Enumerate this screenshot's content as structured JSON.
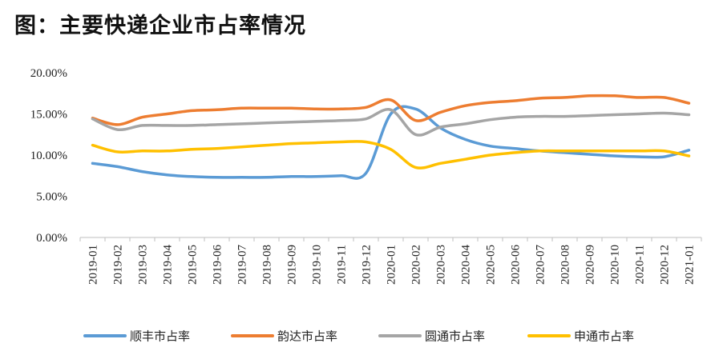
{
  "title": "图：主要快递企业市占率情况",
  "chart_data": {
    "type": "line",
    "title": "图：主要快递企业市占率情况",
    "xlabel": "",
    "ylabel": "",
    "ylim": [
      0,
      20
    ],
    "yticks": [
      "0.00%",
      "5.00%",
      "10.00%",
      "15.00%",
      "20.00%"
    ],
    "grid": false,
    "legend_position": "bottom",
    "x": [
      "2019-01",
      "2019-02",
      "2019-03",
      "2019-04",
      "2019-05",
      "2019-06",
      "2019-07",
      "2019-08",
      "2019-09",
      "2019-10",
      "2019-11",
      "2019-12",
      "2020-01",
      "2020-02",
      "2020-03",
      "2020-04",
      "2020-05",
      "2020-06",
      "2020-07",
      "2020-08",
      "2020-09",
      "2020-10",
      "2020-11",
      "2020-12",
      "2021-01"
    ],
    "series": [
      {
        "name": "顺丰市占率",
        "color": "#5B9BD5",
        "values": [
          9.0,
          8.6,
          8.0,
          7.6,
          7.4,
          7.3,
          7.3,
          7.3,
          7.4,
          7.4,
          7.5,
          7.8,
          15.0,
          15.6,
          13.3,
          11.9,
          11.1,
          10.8,
          10.5,
          10.3,
          10.1,
          9.9,
          9.8,
          9.8,
          10.6
        ]
      },
      {
        "name": "韵达市占率",
        "color": "#ED7D31",
        "values": [
          14.5,
          13.7,
          14.6,
          15.0,
          15.4,
          15.5,
          15.7,
          15.7,
          15.7,
          15.6,
          15.6,
          15.8,
          16.7,
          14.2,
          15.2,
          16.0,
          16.4,
          16.6,
          16.9,
          17.0,
          17.2,
          17.2,
          17.0,
          17.0,
          16.3
        ]
      },
      {
        "name": "圆通市占率",
        "color": "#A5A5A5",
        "values": [
          14.4,
          13.1,
          13.6,
          13.6,
          13.6,
          13.7,
          13.8,
          13.9,
          14.0,
          14.1,
          14.2,
          14.4,
          15.5,
          12.5,
          13.4,
          13.8,
          14.3,
          14.6,
          14.7,
          14.7,
          14.8,
          14.9,
          15.0,
          15.1,
          14.9
        ]
      },
      {
        "name": "申通市占率",
        "color": "#FFC000",
        "values": [
          11.2,
          10.4,
          10.5,
          10.5,
          10.7,
          10.8,
          11.0,
          11.2,
          11.4,
          11.5,
          11.6,
          11.6,
          10.7,
          8.5,
          9.0,
          9.5,
          10.0,
          10.3,
          10.5,
          10.5,
          10.5,
          10.5,
          10.5,
          10.5,
          9.9
        ]
      }
    ]
  }
}
